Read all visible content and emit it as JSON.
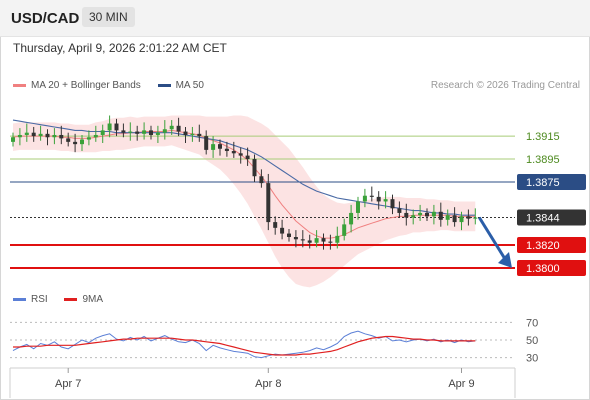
{
  "header": {
    "symbol": "USD/CAD",
    "timeframe": "30 MIN"
  },
  "datetime": "Thursday, April 9, 2026 2:01:22 AM CET",
  "legend_top": [
    {
      "label": "MA 20 + Bollinger Bands",
      "color": "#f08080"
    },
    {
      "label": "MA 50",
      "color": "#2b4d85"
    }
  ],
  "copyright": "Research © 2026 Trading Central",
  "legend_bottom": [
    {
      "label": "RSI",
      "color": "#5b7fd6"
    },
    {
      "label": "9MA",
      "color": "#e02020"
    }
  ],
  "chart_data": [
    {
      "type": "candlestick",
      "title": "USD/CAD 30 MIN",
      "ylim": [
        1.3786,
        1.395
      ],
      "x_ticks": [
        {
          "label": "Apr 7",
          "index": 8
        },
        {
          "label": "Apr 8",
          "index": 37
        },
        {
          "label": "Apr 9",
          "index": 65
        }
      ],
      "candle_count": 68,
      "levels": [
        {
          "value": "1.3915",
          "kind": "resistance-ma",
          "color": "#a8cc78"
        },
        {
          "value": "1.3895",
          "kind": "resistance-ma",
          "color": "#a8cc78"
        },
        {
          "value": "1.3875",
          "kind": "pivot",
          "color": "#2b4d85"
        },
        {
          "value": "1.3844",
          "kind": "last-price",
          "color": "#333333"
        },
        {
          "value": "1.3820",
          "kind": "support",
          "color": "#e01010"
        },
        {
          "value": "1.3800",
          "kind": "support",
          "color": "#e01010"
        }
      ],
      "closes": [
        1.3914,
        1.3916,
        1.3918,
        1.3915,
        1.3917,
        1.3914,
        1.3916,
        1.3913,
        1.391,
        1.3908,
        1.3912,
        1.3914,
        1.3916,
        1.392,
        1.3926,
        1.392,
        1.3918,
        1.3919,
        1.3917,
        1.392,
        1.3916,
        1.3918,
        1.3921,
        1.3924,
        1.3919,
        1.3916,
        1.3917,
        1.3915,
        1.3903,
        1.3908,
        1.3904,
        1.3902,
        1.39,
        1.3898,
        1.3895,
        1.388,
        1.3874,
        1.384,
        1.3835,
        1.383,
        1.3827,
        1.3825,
        1.3824,
        1.3822,
        1.3826,
        1.3823,
        1.3822,
        1.3828,
        1.3838,
        1.3848,
        1.3858,
        1.3863,
        1.3862,
        1.3858,
        1.386,
        1.3852,
        1.3848,
        1.3844,
        1.3846,
        1.3848,
        1.3845,
        1.3849,
        1.3842,
        1.3846,
        1.384,
        1.3845,
        1.3843,
        1.3844
      ],
      "ma20": [
        1.3914,
        1.3915,
        1.3915,
        1.3915,
        1.3915,
        1.3915,
        1.3915,
        1.3914,
        1.3914,
        1.3913,
        1.3913,
        1.3913,
        1.3914,
        1.3915,
        1.3916,
        1.3917,
        1.3917,
        1.3918,
        1.3918,
        1.3919,
        1.3919,
        1.3919,
        1.3919,
        1.392,
        1.3919,
        1.3918,
        1.3917,
        1.3916,
        1.3913,
        1.3911,
        1.3909,
        1.3906,
        1.3903,
        1.3899,
        1.3894,
        1.3887,
        1.388,
        1.3872,
        1.3863,
        1.3855,
        1.3848,
        1.3841,
        1.3836,
        1.3831,
        1.3828,
        1.3826,
        1.3826,
        1.3827,
        1.3829,
        1.3832,
        1.3835,
        1.3837,
        1.3839,
        1.3841,
        1.3843,
        1.3844,
        1.3845,
        1.3845,
        1.3846,
        1.3846,
        1.3846,
        1.3846,
        1.3846,
        1.3846,
        1.3845,
        1.3845,
        1.3845,
        1.3845
      ],
      "ma50": [
        1.3929,
        1.3928,
        1.3927,
        1.3926,
        1.3925,
        1.3924,
        1.3923,
        1.3922,
        1.3921,
        1.392,
        1.392,
        1.3919,
        1.3919,
        1.3919,
        1.3919,
        1.3918,
        1.3918,
        1.3918,
        1.3918,
        1.3918,
        1.3918,
        1.3918,
        1.3918,
        1.3918,
        1.3917,
        1.3916,
        1.3915,
        1.3914,
        1.3913,
        1.3912,
        1.3911,
        1.3909,
        1.3907,
        1.3905,
        1.3903,
        1.39,
        1.3897,
        1.3893,
        1.3889,
        1.3885,
        1.3881,
        1.3877,
        1.3873,
        1.387,
        1.3867,
        1.3865,
        1.3863,
        1.3861,
        1.386,
        1.3859,
        1.3858,
        1.3857,
        1.3856,
        1.3855,
        1.3854,
        1.3853,
        1.3852,
        1.3851,
        1.385,
        1.385,
        1.3849,
        1.3848,
        1.3848,
        1.3847,
        1.3847,
        1.3846,
        1.3846,
        1.3846
      ],
      "bb_width": [
        0.0012,
        0.0012,
        0.0012,
        0.0012,
        0.0012,
        0.0012,
        0.0012,
        0.0012,
        0.0012,
        0.0012,
        0.0012,
        0.0012,
        0.0013,
        0.0013,
        0.0014,
        0.0014,
        0.0014,
        0.0014,
        0.0013,
        0.0013,
        0.0013,
        0.0013,
        0.0013,
        0.0013,
        0.0014,
        0.0015,
        0.0016,
        0.0017,
        0.0019,
        0.0021,
        0.0023,
        0.0026,
        0.003,
        0.0034,
        0.0038,
        0.0042,
        0.0046,
        0.005,
        0.0053,
        0.0055,
        0.0056,
        0.0055,
        0.0052,
        0.0048,
        0.0043,
        0.0038,
        0.0034,
        0.003,
        0.0027,
        0.0025,
        0.0023,
        0.0022,
        0.0021,
        0.002,
        0.0019,
        0.0018,
        0.0017,
        0.0016,
        0.0015,
        0.0015,
        0.0014,
        0.0014,
        0.0013,
        0.0013,
        0.0013,
        0.0013,
        0.0013,
        0.0013
      ],
      "forecast": {
        "from": 1.3844,
        "to": 1.38
      }
    },
    {
      "type": "line",
      "title": "RSI",
      "ylim": [
        25,
        75
      ],
      "y_ticks": [
        "70",
        "50",
        "30"
      ],
      "series": [
        {
          "name": "RSI",
          "color": "#5b7fd6",
          "values": [
            38,
            42,
            45,
            40,
            46,
            44,
            48,
            42,
            40,
            45,
            50,
            47,
            52,
            55,
            57,
            51,
            49,
            53,
            50,
            54,
            49,
            52,
            55,
            51,
            48,
            47,
            50,
            46,
            38,
            44,
            41,
            39,
            37,
            36,
            35,
            31,
            30,
            32,
            34,
            33,
            34,
            35,
            36,
            38,
            41,
            39,
            42,
            46,
            54,
            58,
            60,
            57,
            55,
            52,
            54,
            49,
            50,
            48,
            50,
            51,
            49,
            51,
            48,
            50,
            47,
            50,
            48,
            49
          ]
        },
        {
          "name": "9MA",
          "color": "#e02020",
          "values": [
            42,
            42,
            43,
            43,
            43,
            44,
            44,
            44,
            44,
            44,
            45,
            46,
            47,
            48,
            49,
            50,
            51,
            51,
            52,
            52,
            52,
            52,
            52,
            52,
            51,
            50,
            50,
            49,
            48,
            47,
            46,
            44,
            42,
            40,
            38,
            36,
            35,
            34,
            33,
            33,
            33,
            33,
            34,
            34,
            35,
            36,
            37,
            39,
            42,
            45,
            48,
            50,
            52,
            53,
            54,
            54,
            53,
            52,
            51,
            51,
            50,
            50,
            49,
            49,
            49,
            49,
            49,
            49
          ]
        }
      ]
    }
  ]
}
